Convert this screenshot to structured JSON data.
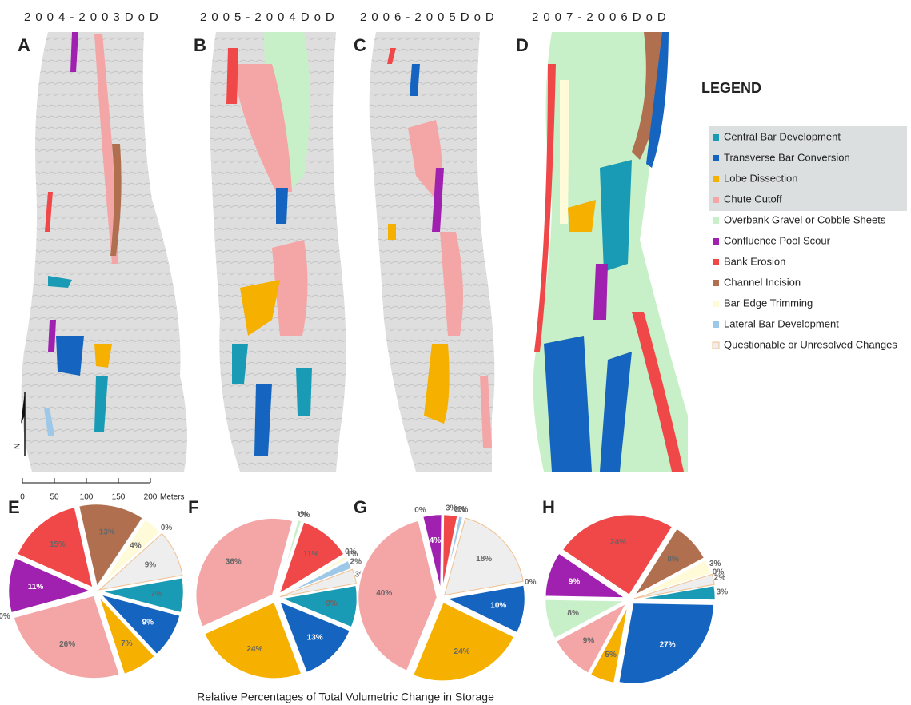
{
  "maps": {
    "headers": [
      "2004-2003DoD",
      "2005-2004DoD",
      "2006-2005DoD",
      "2007-2006DoD"
    ],
    "panel_labels": [
      "A",
      "B",
      "C",
      "D"
    ],
    "north": "N",
    "scale": {
      "ticks": [
        0,
        50,
        100,
        150,
        200
      ],
      "xlim": [
        0,
        200
      ],
      "unit": "Meters"
    }
  },
  "legend": {
    "title": "LEGEND",
    "items": [
      {
        "name": "Central Bar Development",
        "color": "#1a9bb5"
      },
      {
        "name": "Transverse Bar Conversion",
        "color": "#1565c0"
      },
      {
        "name": "Lobe Dissection",
        "color": "#f5b000"
      },
      {
        "name": "Chute Cutoff",
        "color": "#f4a6a6"
      },
      {
        "name": "Overbank Gravel or Cobble Sheets",
        "color": "#c8f0c8"
      },
      {
        "name": "Confluence Pool Scour",
        "color": "#a020b0"
      },
      {
        "name": "Bank Erosion",
        "color": "#f04848"
      },
      {
        "name": "Channel Incision",
        "color": "#b07050"
      },
      {
        "name": "Bar Edge Trimming",
        "color": "#fffbd8"
      },
      {
        "name": "Lateral Bar Development",
        "color": "#9ec8e8"
      },
      {
        "name": "Questionable or Unresolved Changes",
        "color": "#eeeeee"
      }
    ]
  },
  "chart_data": [
    {
      "type": "pie",
      "title": "E",
      "values": [
        7,
        9,
        7,
        26,
        0,
        11,
        15,
        13,
        4,
        0,
        9
      ],
      "value_labels": [
        "7%",
        "9%",
        "7%",
        "26%",
        "0%",
        "11%",
        "15%",
        "13%",
        "4%",
        "0%",
        "9%"
      ]
    },
    {
      "type": "pie",
      "title": "F",
      "values": [
        9,
        13,
        24,
        36,
        1,
        0,
        11,
        0,
        1,
        2,
        3
      ],
      "value_labels": [
        "9%",
        "13%",
        "24%",
        "36%",
        "1%",
        "0%",
        "11%",
        "0%",
        "1%",
        "2%",
        "3%"
      ]
    },
    {
      "type": "pie",
      "title": "G",
      "values": [
        0,
        10,
        24,
        40,
        0,
        4,
        3,
        0,
        0,
        1,
        18
      ],
      "value_labels": [
        "0%",
        "10%",
        "24%",
        "40%",
        "0%",
        "4%",
        "3%",
        "0%",
        "0%",
        "1%",
        "18%"
      ]
    },
    {
      "type": "pie",
      "title": "H",
      "values": [
        3,
        27,
        5,
        9,
        8,
        9,
        24,
        8,
        3,
        0,
        2
      ],
      "value_labels": [
        "3%",
        "27%",
        "5%",
        "9%",
        "8%",
        "9%",
        "24%",
        "8%",
        "3%",
        "0%",
        "2%"
      ]
    }
  ],
  "caption": "Relative Percentages of Total Volumetric Change in Storage"
}
